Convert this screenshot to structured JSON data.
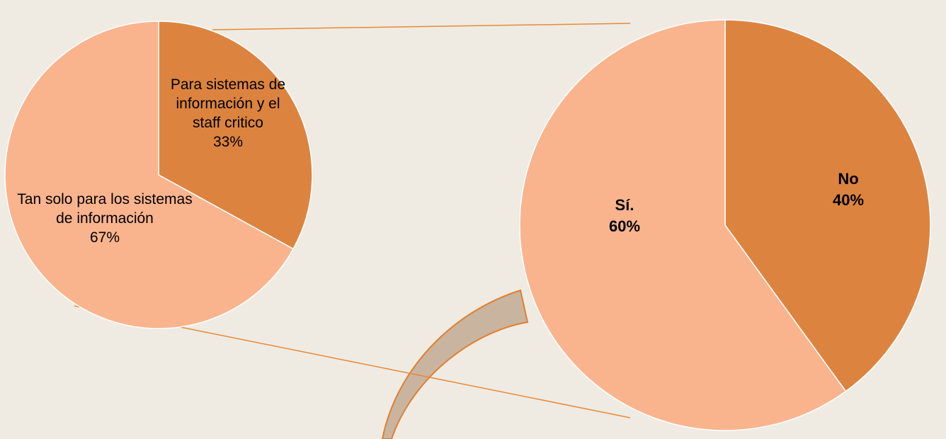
{
  "chart_data": [
    {
      "type": "pie",
      "categories": [
        "Para sistemas de información y el staff critico",
        "Tan solo para los sistemas de información"
      ],
      "values": [
        33,
        67
      ],
      "value_labels": [
        "33%",
        "67%"
      ],
      "colors": [
        "#dc843f",
        "#f9b48e"
      ]
    },
    {
      "type": "pie",
      "categories": [
        "No",
        "Sí."
      ],
      "values": [
        40,
        60
      ],
      "value_labels": [
        "40%",
        "60%"
      ],
      "colors": [
        "#dc843f",
        "#f9b48e"
      ]
    }
  ]
}
